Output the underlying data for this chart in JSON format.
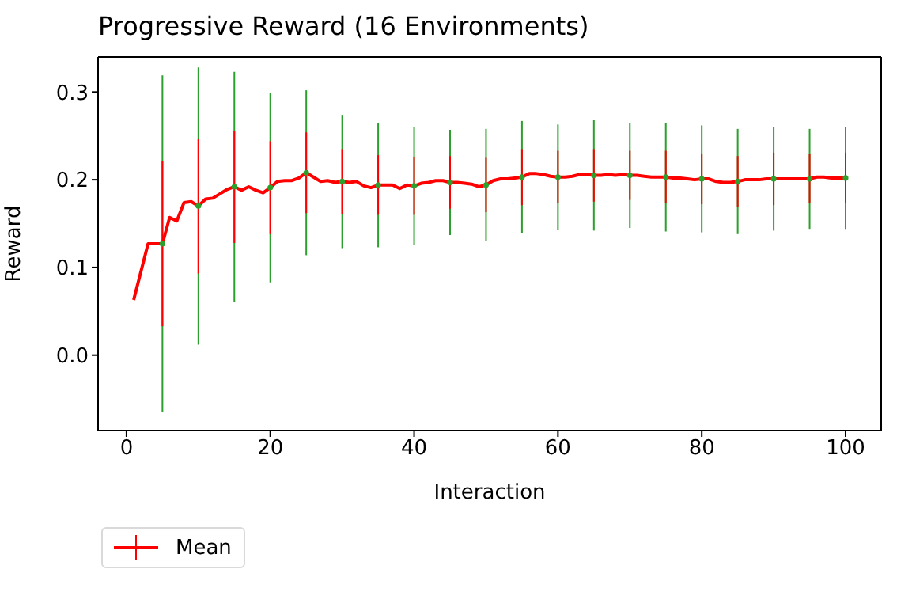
{
  "chart_data": {
    "type": "line",
    "title": "Progressive Reward (16 Environments)",
    "xlabel": "Interaction",
    "ylabel": "Reward",
    "x": [
      1,
      3,
      4,
      5,
      6,
      7,
      8,
      9,
      10,
      11,
      12,
      13,
      14,
      15,
      16,
      17,
      18,
      19,
      20,
      21,
      22,
      23,
      24,
      25,
      26,
      27,
      28,
      29,
      30,
      31,
      32,
      33,
      34,
      35,
      36,
      37,
      38,
      39,
      40,
      41,
      42,
      43,
      44,
      45,
      46,
      47,
      48,
      49,
      50,
      51,
      52,
      53,
      54,
      55,
      56,
      57,
      58,
      59,
      60,
      61,
      62,
      63,
      64,
      65,
      66,
      67,
      68,
      69,
      70,
      71,
      72,
      73,
      74,
      75,
      76,
      77,
      78,
      79,
      80,
      81,
      82,
      83,
      84,
      85,
      86,
      87,
      88,
      89,
      90,
      91,
      92,
      93,
      94,
      95,
      96,
      97,
      98,
      99,
      100
    ],
    "series": [
      {
        "name": "Mean",
        "color": "#ff0000",
        "values": [
          0.063,
          0.127,
          0.127,
          0.127,
          0.157,
          0.153,
          0.174,
          0.175,
          0.17,
          0.178,
          0.179,
          0.184,
          0.189,
          0.192,
          0.188,
          0.192,
          0.188,
          0.185,
          0.191,
          0.198,
          0.199,
          0.199,
          0.202,
          0.208,
          0.203,
          0.198,
          0.199,
          0.197,
          0.198,
          0.197,
          0.198,
          0.193,
          0.191,
          0.194,
          0.194,
          0.194,
          0.19,
          0.194,
          0.193,
          0.196,
          0.197,
          0.199,
          0.199,
          0.197,
          0.197,
          0.196,
          0.195,
          0.192,
          0.194,
          0.199,
          0.201,
          0.201,
          0.202,
          0.203,
          0.207,
          0.207,
          0.206,
          0.204,
          0.203,
          0.203,
          0.204,
          0.206,
          0.206,
          0.205,
          0.205,
          0.206,
          0.205,
          0.206,
          0.205,
          0.205,
          0.204,
          0.203,
          0.203,
          0.203,
          0.202,
          0.202,
          0.201,
          0.2,
          0.201,
          0.201,
          0.198,
          0.197,
          0.197,
          0.198,
          0.2,
          0.2,
          0.2,
          0.201,
          0.201,
          0.201,
          0.201,
          0.201,
          0.201,
          0.201,
          0.203,
          0.203,
          0.202,
          0.202,
          0.202
        ],
        "errors": [
          null,
          null,
          null,
          0.094,
          null,
          null,
          null,
          null,
          0.077,
          null,
          null,
          null,
          null,
          0.064,
          null,
          null,
          null,
          null,
          0.053,
          null,
          null,
          null,
          null,
          0.046,
          null,
          null,
          null,
          null,
          0.037,
          null,
          null,
          null,
          null,
          0.034,
          null,
          null,
          null,
          null,
          0.033,
          null,
          null,
          null,
          null,
          0.03,
          null,
          null,
          null,
          null,
          0.031,
          null,
          null,
          null,
          null,
          0.032,
          null,
          null,
          null,
          null,
          0.03,
          null,
          null,
          null,
          null,
          0.03,
          null,
          null,
          null,
          null,
          0.028,
          null,
          null,
          null,
          null,
          0.03,
          null,
          null,
          null,
          null,
          0.029,
          null,
          null,
          null,
          null,
          0.029,
          null,
          null,
          null,
          null,
          0.03,
          null,
          null,
          null,
          null,
          0.028,
          null,
          null,
          null,
          null,
          0.029
        ]
      },
      {
        "type": "scatter",
        "marker": "none",
        "color": "#2ca02c",
        "x": [
          5,
          10,
          15,
          20,
          25,
          30,
          35,
          40,
          45,
          50,
          55,
          60,
          65,
          70,
          75,
          80,
          85,
          90,
          95,
          100
        ],
        "values": [
          0.127,
          0.17,
          0.192,
          0.191,
          0.208,
          0.198,
          0.194,
          0.193,
          0.197,
          0.194,
          0.203,
          0.203,
          0.205,
          0.205,
          0.203,
          0.201,
          0.198,
          0.201,
          0.201,
          0.202
        ],
        "errors": [
          0.192,
          0.158,
          0.131,
          0.108,
          0.094,
          0.076,
          0.071,
          0.067,
          0.06,
          0.064,
          0.064,
          0.06,
          0.063,
          0.06,
          0.062,
          0.061,
          0.06,
          0.059,
          0.057,
          0.058
        ]
      }
    ],
    "marker": "none",
    "grid": false,
    "legend": "bottom left",
    "xlim": [
      -3.95,
      104.95
    ],
    "xticks": [
      0,
      20,
      40,
      60,
      80,
      100
    ],
    "ylim": [
      -0.086,
      0.34
    ],
    "yticks": [
      {
        "value": 0,
        "label": "0.0"
      },
      0.1,
      0.2,
      0.3
    ]
  }
}
